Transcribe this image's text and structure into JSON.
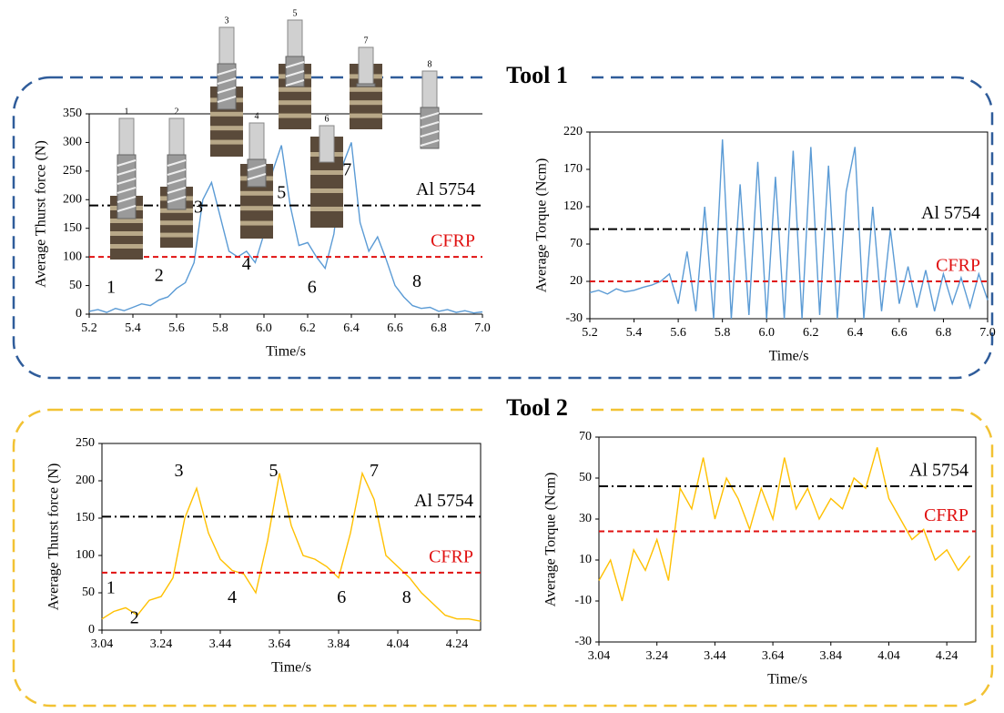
{
  "groups": [
    {
      "title": "Tool 1",
      "color": "#2f5c9a",
      "title_color": "#1f6fb0"
    },
    {
      "title": "Tool 2",
      "color": "#f2c233",
      "title_color": "#f2c233"
    }
  ],
  "drill_labels": [
    "1",
    "2",
    "3",
    "4",
    "5",
    "6",
    "7",
    "8"
  ],
  "chart_data": [
    {
      "type": "line",
      "group": 0,
      "color": "#5b9bd5",
      "y_label": "Average Thurst force (N)",
      "x_label": "Time/s",
      "x": [
        5.2,
        5.24,
        5.28,
        5.32,
        5.36,
        5.4,
        5.44,
        5.48,
        5.52,
        5.56,
        5.6,
        5.64,
        5.68,
        5.72,
        5.76,
        5.8,
        5.84,
        5.88,
        5.92,
        5.96,
        6.0,
        6.04,
        6.08,
        6.12,
        6.16,
        6.2,
        6.24,
        6.28,
        6.32,
        6.36,
        6.4,
        6.44,
        6.48,
        6.52,
        6.56,
        6.6,
        6.64,
        6.68,
        6.72,
        6.76,
        6.8,
        6.84,
        6.88,
        6.92,
        6.96,
        7.0
      ],
      "values": [
        5,
        8,
        3,
        10,
        6,
        12,
        18,
        15,
        25,
        30,
        45,
        55,
        90,
        200,
        230,
        170,
        110,
        100,
        110,
        90,
        140,
        250,
        295,
        190,
        120,
        125,
        100,
        80,
        140,
        260,
        300,
        160,
        110,
        135,
        95,
        50,
        30,
        15,
        10,
        12,
        5,
        8,
        3,
        6,
        2,
        4
      ],
      "xlim": [
        5.2,
        7.0
      ],
      "ylim": [
        0,
        350
      ],
      "xticks": [
        5.2,
        5.4,
        5.6,
        5.8,
        {
          "value": 6,
          "label": "6.0"
        },
        6.2,
        6.4,
        6.6,
        6.8,
        {
          "value": 7,
          "label": "7.0"
        }
      ],
      "yticks": [
        0,
        50,
        100,
        150,
        200,
        250,
        300,
        350
      ],
      "ref_lines": [
        {
          "label": "Al 5754",
          "value": 190,
          "color": "#000000",
          "style": "dashdot"
        },
        {
          "label": "CFRP",
          "value": 100,
          "color": "#e01010",
          "style": "dash"
        }
      ],
      "annotations": [
        {
          "label": "1",
          "x": 5.3,
          "y": 45
        },
        {
          "label": "2",
          "x": 5.52,
          "y": 65
        },
        {
          "label": "3",
          "x": 5.7,
          "y": 185
        },
        {
          "label": "4",
          "x": 5.92,
          "y": 85
        },
        {
          "label": "5",
          "x": 6.08,
          "y": 210
        },
        {
          "label": "6",
          "x": 6.22,
          "y": 45
        },
        {
          "label": "7",
          "x": 6.38,
          "y": 250
        },
        {
          "label": "8",
          "x": 6.7,
          "y": 55
        }
      ]
    },
    {
      "type": "line",
      "group": 0,
      "color": "#5b9bd5",
      "y_label": "Average Torque (Ncm)",
      "x_label": "Time/s",
      "x": [
        5.2,
        5.24,
        5.28,
        5.32,
        5.36,
        5.4,
        5.44,
        5.48,
        5.52,
        5.56,
        5.6,
        5.64,
        5.68,
        5.72,
        5.76,
        5.8,
        5.84,
        5.88,
        5.92,
        5.96,
        6.0,
        6.04,
        6.08,
        6.12,
        6.16,
        6.2,
        6.24,
        6.28,
        6.32,
        6.36,
        6.4,
        6.44,
        6.48,
        6.52,
        6.56,
        6.6,
        6.64,
        6.68,
        6.72,
        6.76,
        6.8,
        6.84,
        6.88,
        6.92,
        6.96,
        7.0
      ],
      "values": [
        5,
        8,
        3,
        10,
        6,
        8,
        12,
        15,
        20,
        30,
        -10,
        60,
        -20,
        120,
        -30,
        210,
        -30,
        150,
        -25,
        180,
        -30,
        160,
        -30,
        195,
        -30,
        200,
        -25,
        175,
        -30,
        140,
        200,
        -30,
        120,
        -20,
        90,
        -10,
        40,
        -15,
        35,
        -20,
        30,
        -10,
        25,
        -15,
        30,
        -5
      ],
      "xlim": [
        5.2,
        7.0
      ],
      "ylim": [
        -30,
        220
      ],
      "xticks": [
        5.2,
        5.4,
        5.6,
        5.8,
        {
          "value": 6,
          "label": "6.0"
        },
        6.2,
        6.4,
        6.6,
        6.8,
        {
          "value": 7,
          "label": "7.0"
        }
      ],
      "yticks": [
        -30,
        20,
        70,
        120,
        170,
        220
      ],
      "ref_lines": [
        {
          "label": "Al 5754",
          "value": 90,
          "color": "#000000",
          "style": "dashdot"
        },
        {
          "label": "CFRP",
          "value": 20,
          "color": "#e01010",
          "style": "dash"
        }
      ],
      "annotations": []
    },
    {
      "type": "line",
      "group": 1,
      "color": "#ffc000",
      "y_label": "Average  Thurst force (N)",
      "x_label": "Time/s",
      "x": [
        3.04,
        3.08,
        3.12,
        3.16,
        3.2,
        3.24,
        3.28,
        3.32,
        3.36,
        3.4,
        3.44,
        3.48,
        3.52,
        3.56,
        3.6,
        3.64,
        3.68,
        3.72,
        3.76,
        3.8,
        3.84,
        3.88,
        3.92,
        3.96,
        4.0,
        4.04,
        4.08,
        4.12,
        4.16,
        4.2,
        4.24,
        4.28,
        4.32
      ],
      "values": [
        15,
        25,
        30,
        20,
        40,
        45,
        70,
        150,
        190,
        130,
        95,
        80,
        75,
        50,
        120,
        210,
        140,
        100,
        95,
        85,
        70,
        130,
        210,
        175,
        100,
        85,
        70,
        50,
        35,
        20,
        15,
        15,
        12
      ],
      "xlim": [
        3.04,
        4.32
      ],
      "ylim": [
        0,
        250
      ],
      "xticks": [
        3.04,
        3.24,
        3.44,
        3.64,
        3.84,
        4.04,
        4.24
      ],
      "yticks": [
        0,
        50,
        100,
        150,
        200,
        250
      ],
      "ref_lines": [
        {
          "label": "Al 5754",
          "value": 152,
          "color": "#000000",
          "style": "dashdot"
        },
        {
          "label": "CFRP",
          "value": 77,
          "color": "#e01010",
          "style": "dash"
        }
      ],
      "annotations": [
        {
          "label": "1",
          "x": 3.07,
          "y": 55
        },
        {
          "label": "2",
          "x": 3.15,
          "y": 15
        },
        {
          "label": "3",
          "x": 3.3,
          "y": 212
        },
        {
          "label": "4",
          "x": 3.48,
          "y": 42
        },
        {
          "label": "5",
          "x": 3.62,
          "y": 212
        },
        {
          "label": "6",
          "x": 3.85,
          "y": 42
        },
        {
          "label": "7",
          "x": 3.96,
          "y": 212
        },
        {
          "label": "8",
          "x": 4.07,
          "y": 42
        }
      ]
    },
    {
      "type": "line",
      "group": 1,
      "color": "#ffc000",
      "y_label": "Average Torque (Ncm)",
      "x_label": "Time/s",
      "x": [
        3.04,
        3.08,
        3.12,
        3.16,
        3.2,
        3.24,
        3.28,
        3.32,
        3.36,
        3.4,
        3.44,
        3.48,
        3.52,
        3.56,
        3.6,
        3.64,
        3.68,
        3.72,
        3.76,
        3.8,
        3.84,
        3.88,
        3.92,
        3.96,
        4.0,
        4.04,
        4.08,
        4.12,
        4.16,
        4.2,
        4.24,
        4.28,
        4.32
      ],
      "values": [
        0,
        10,
        -10,
        15,
        5,
        20,
        0,
        45,
        35,
        60,
        30,
        50,
        40,
        25,
        45,
        30,
        60,
        35,
        45,
        30,
        40,
        35,
        50,
        45,
        65,
        40,
        30,
        20,
        25,
        10,
        15,
        5,
        12
      ],
      "xlim": [
        3.04,
        4.34
      ],
      "ylim": [
        -30,
        70
      ],
      "xticks": [
        3.04,
        3.24,
        3.44,
        3.64,
        3.84,
        4.04,
        4.24
      ],
      "yticks": [
        -30,
        -10,
        10,
        30,
        50,
        70
      ],
      "ref_lines": [
        {
          "label": "Al 5754",
          "value": 46,
          "color": "#000000",
          "style": "dashdot"
        },
        {
          "label": "CFRP",
          "value": 24,
          "color": "#e01010",
          "style": "dash"
        }
      ],
      "annotations": []
    }
  ]
}
